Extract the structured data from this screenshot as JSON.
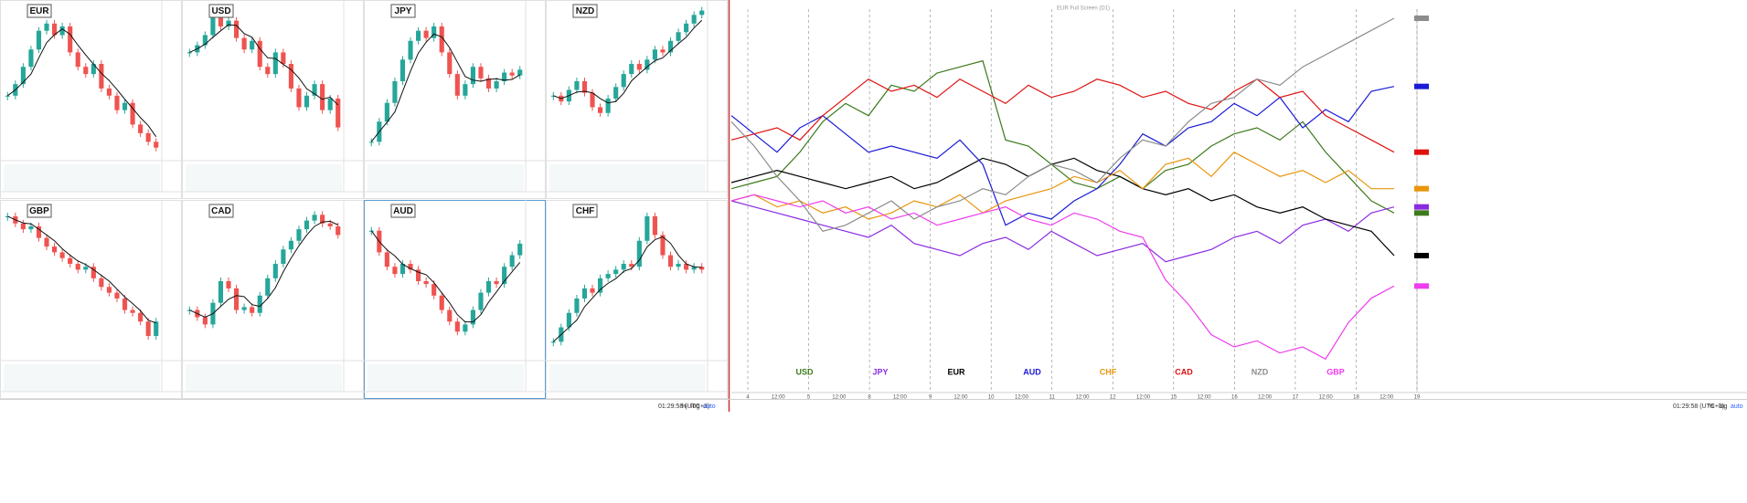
{
  "panels": [
    {
      "name": "EUR",
      "closes": [
        40,
        48,
        60,
        72,
        85,
        90,
        82,
        88,
        70,
        60,
        55,
        62,
        45,
        40,
        30,
        35,
        20,
        14,
        8,
        4
      ]
    },
    {
      "name": "USD",
      "closes": [
        70,
        75,
        82,
        95,
        88,
        92,
        80,
        72,
        78,
        60,
        55,
        70,
        62,
        45,
        32,
        40,
        48,
        30,
        38,
        18
      ]
    },
    {
      "name": "JPY",
      "closes": [
        8,
        22,
        35,
        50,
        65,
        78,
        85,
        80,
        88,
        70,
        55,
        40,
        48,
        60,
        52,
        45,
        50,
        56,
        54,
        58
      ]
    },
    {
      "name": "NZD",
      "closes": [
        40,
        36,
        44,
        50,
        42,
        32,
        28,
        38,
        46,
        55,
        62,
        58,
        65,
        72,
        70,
        78,
        84,
        90,
        96,
        99
      ]
    },
    {
      "name": "GBP",
      "closes": [
        95,
        90,
        86,
        88,
        80,
        74,
        70,
        66,
        62,
        58,
        60,
        52,
        46,
        42,
        38,
        30,
        28,
        22,
        12,
        22
      ]
    },
    {
      "name": "CAD",
      "closes": [
        30,
        25,
        20,
        35,
        50,
        45,
        30,
        32,
        28,
        40,
        52,
        62,
        72,
        78,
        86,
        92,
        96,
        90,
        88,
        82
      ]
    },
    {
      "name": "AUD",
      "closes": [
        85,
        70,
        60,
        55,
        62,
        58,
        50,
        48,
        40,
        30,
        22,
        15,
        20,
        30,
        42,
        50,
        48,
        60,
        68,
        76
      ]
    },
    {
      "name": "CHF",
      "closes": [
        8,
        18,
        28,
        38,
        45,
        42,
        52,
        55,
        58,
        62,
        60,
        78,
        95,
        82,
        68,
        60,
        62,
        58,
        60,
        58
      ]
    }
  ],
  "comparison": {
    "title": "EUR Full Screen (D1)",
    "ylim": [
      -1.6,
      1.4
    ],
    "x_labels": [
      "4",
      "12:00",
      "5",
      "12:00",
      "8",
      "12:00",
      "9",
      "12:00",
      "10",
      "12:00",
      "11",
      "12:00",
      "12",
      "12:00",
      "15",
      "12:00",
      "16",
      "12:00",
      "17",
      "12:00",
      "18",
      "12:00",
      "19"
    ],
    "series": [
      {
        "name": "USD",
        "color": "#3d7a1c",
        "values": [
          0.0,
          0.05,
          0.1,
          0.3,
          0.55,
          0.7,
          0.6,
          0.85,
          0.8,
          0.95,
          1.0,
          1.05,
          0.4,
          0.35,
          0.2,
          0.05,
          0.0,
          0.1,
          0.0,
          0.15,
          0.2,
          0.35,
          0.45,
          0.5,
          0.4,
          0.55,
          0.3,
          0.1,
          -0.1,
          -0.2
        ]
      },
      {
        "name": "JPY",
        "color": "#8a2be2",
        "values": [
          -0.1,
          -0.15,
          -0.2,
          -0.25,
          -0.3,
          -0.35,
          -0.4,
          -0.3,
          -0.45,
          -0.5,
          -0.55,
          -0.45,
          -0.4,
          -0.5,
          -0.35,
          -0.45,
          -0.55,
          -0.5,
          -0.45,
          -0.6,
          -0.55,
          -0.5,
          -0.4,
          -0.35,
          -0.45,
          -0.3,
          -0.25,
          -0.35,
          -0.2,
          -0.15
        ]
      },
      {
        "name": "EUR",
        "color": "#000000",
        "values": [
          0.05,
          0.1,
          0.15,
          0.1,
          0.05,
          0.0,
          0.05,
          0.1,
          0.0,
          0.05,
          0.15,
          0.25,
          0.2,
          0.1,
          0.2,
          0.25,
          0.15,
          0.1,
          0.0,
          -0.05,
          0.0,
          -0.1,
          -0.05,
          -0.15,
          -0.2,
          -0.15,
          -0.25,
          -0.3,
          -0.35,
          -0.55
        ]
      },
      {
        "name": "AUD",
        "color": "#1a1ad6",
        "values": [
          0.6,
          0.45,
          0.3,
          0.5,
          0.6,
          0.45,
          0.3,
          0.35,
          0.3,
          0.25,
          0.4,
          0.2,
          -0.3,
          -0.2,
          -0.25,
          -0.1,
          0.0,
          0.2,
          0.45,
          0.35,
          0.5,
          0.55,
          0.7,
          0.6,
          0.75,
          0.5,
          0.65,
          0.55,
          0.8,
          0.84
        ]
      },
      {
        "name": "CHF",
        "color": "#e8950c",
        "values": [
          -0.1,
          -0.05,
          -0.15,
          -0.1,
          -0.2,
          -0.15,
          -0.25,
          -0.2,
          -0.1,
          -0.15,
          -0.05,
          -0.2,
          -0.1,
          -0.05,
          0.0,
          0.1,
          0.05,
          0.15,
          0.0,
          0.2,
          0.25,
          0.1,
          0.3,
          0.2,
          0.1,
          0.15,
          0.05,
          0.15,
          0.0,
          0.0
        ]
      },
      {
        "name": "CAD",
        "color": "#e01010",
        "values": [
          0.4,
          0.45,
          0.5,
          0.4,
          0.6,
          0.75,
          0.9,
          0.8,
          0.85,
          0.75,
          0.9,
          0.8,
          0.7,
          0.85,
          0.75,
          0.8,
          0.9,
          0.85,
          0.75,
          0.8,
          0.7,
          0.65,
          0.8,
          0.9,
          0.75,
          0.8,
          0.6,
          0.5,
          0.4,
          0.3
        ]
      },
      {
        "name": "NZD",
        "color": "#8c8c8c",
        "values": [
          0.55,
          0.35,
          0.1,
          -0.1,
          -0.35,
          -0.3,
          -0.2,
          -0.1,
          -0.25,
          -0.15,
          -0.1,
          0.0,
          -0.05,
          0.1,
          0.2,
          0.15,
          0.05,
          0.25,
          0.4,
          0.35,
          0.55,
          0.7,
          0.75,
          0.9,
          0.85,
          1.0,
          1.1,
          1.2,
          1.3,
          1.4
        ]
      },
      {
        "name": "GBP",
        "color": "#ee3cee",
        "values": [
          -0.1,
          -0.05,
          -0.1,
          -0.15,
          -0.1,
          -0.2,
          -0.15,
          -0.25,
          -0.2,
          -0.3,
          -0.25,
          -0.2,
          -0.15,
          -0.25,
          -0.3,
          -0.2,
          -0.25,
          -0.35,
          -0.4,
          -0.75,
          -0.95,
          -1.2,
          -1.3,
          -1.25,
          -1.35,
          -1.3,
          -1.4,
          -1.1,
          -0.9,
          -0.8
        ]
      }
    ]
  },
  "toolbar": {
    "left": {
      "time": "01:29:58 (UTC+3)",
      "percent": "%",
      "log": "log",
      "auto": "auto"
    },
    "right": {
      "time": "01:29:58 (UTC+3)",
      "percent": "%",
      "log": "log",
      "auto": "auto"
    }
  }
}
